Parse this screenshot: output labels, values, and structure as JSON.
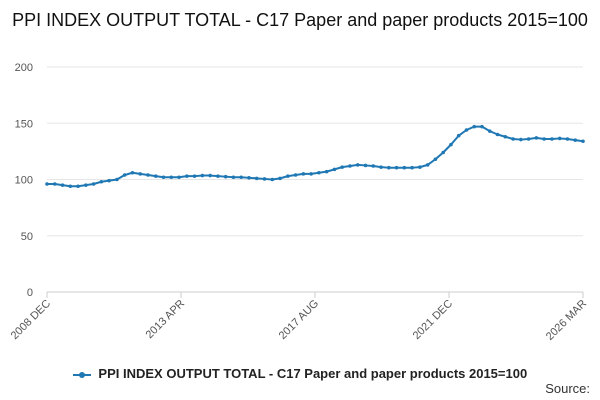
{
  "chart_data": {
    "type": "line",
    "title": "PPI INDEX OUTPUT TOTAL - C17 Paper and paper products 2015=100",
    "x_tick_labels": [
      "2008 DEC",
      "2013 APR",
      "2017 AUG",
      "2021 DEC",
      "2026 MAR"
    ],
    "y_ticks": [
      0,
      50,
      100,
      150,
      200
    ],
    "ylim": [
      0,
      200
    ],
    "xlim": [
      "2008-12",
      "2026-03"
    ],
    "grid": "horizontal",
    "legend_position": "bottom",
    "series": [
      {
        "name": "PPI INDEX OUTPUT TOTAL - C17 Paper and paper products 2015=100",
        "color": "#1f78b4",
        "points": [
          [
            "2008-12",
            96
          ],
          [
            "2009-03",
            96
          ],
          [
            "2009-06",
            95
          ],
          [
            "2009-09",
            94
          ],
          [
            "2009-12",
            94
          ],
          [
            "2010-03",
            95
          ],
          [
            "2010-06",
            96
          ],
          [
            "2010-09",
            98
          ],
          [
            "2010-12",
            99
          ],
          [
            "2011-03",
            100
          ],
          [
            "2011-06",
            104
          ],
          [
            "2011-09",
            106
          ],
          [
            "2011-12",
            105
          ],
          [
            "2012-03",
            104
          ],
          [
            "2012-06",
            103
          ],
          [
            "2012-09",
            102
          ],
          [
            "2012-12",
            102
          ],
          [
            "2013-03",
            102
          ],
          [
            "2013-06",
            103
          ],
          [
            "2013-09",
            103
          ],
          [
            "2013-12",
            103.5
          ],
          [
            "2014-03",
            103.5
          ],
          [
            "2014-06",
            103
          ],
          [
            "2014-09",
            102.5
          ],
          [
            "2014-12",
            102
          ],
          [
            "2015-03",
            102
          ],
          [
            "2015-06",
            101.5
          ],
          [
            "2015-09",
            101
          ],
          [
            "2015-12",
            100.5
          ],
          [
            "2016-03",
            100
          ],
          [
            "2016-06",
            101
          ],
          [
            "2016-09",
            103
          ],
          [
            "2016-12",
            104
          ],
          [
            "2017-03",
            105
          ],
          [
            "2017-06",
            105
          ],
          [
            "2017-09",
            106
          ],
          [
            "2017-12",
            107
          ],
          [
            "2018-03",
            109
          ],
          [
            "2018-06",
            111
          ],
          [
            "2018-09",
            112
          ],
          [
            "2018-12",
            113
          ],
          [
            "2019-03",
            112.5
          ],
          [
            "2019-06",
            112
          ],
          [
            "2019-09",
            111
          ],
          [
            "2019-12",
            110.5
          ],
          [
            "2020-03",
            110.5
          ],
          [
            "2020-06",
            110.5
          ],
          [
            "2020-09",
            110.5
          ],
          [
            "2020-12",
            111
          ],
          [
            "2021-03",
            113
          ],
          [
            "2021-06",
            118
          ],
          [
            "2021-09",
            124
          ],
          [
            "2021-12",
            131
          ],
          [
            "2022-03",
            139
          ],
          [
            "2022-06",
            144
          ],
          [
            "2022-09",
            147
          ],
          [
            "2022-12",
            147
          ],
          [
            "2023-03",
            143
          ],
          [
            "2023-06",
            140
          ],
          [
            "2023-09",
            138
          ],
          [
            "2023-12",
            136
          ],
          [
            "2024-03",
            135.5
          ],
          [
            "2024-06",
            136
          ],
          [
            "2024-09",
            137
          ],
          [
            "2024-12",
            136
          ],
          [
            "2025-03",
            136
          ],
          [
            "2025-06",
            136.5
          ],
          [
            "2025-09",
            136
          ],
          [
            "2025-12",
            135
          ],
          [
            "2026-03",
            134
          ]
        ]
      }
    ]
  },
  "footer": {
    "source_label": "Source:"
  }
}
